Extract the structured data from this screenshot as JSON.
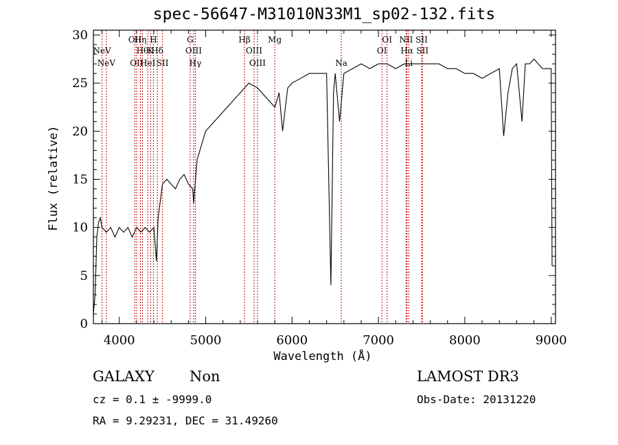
{
  "chart_data": {
    "type": "line",
    "title": "spec-56647-M31010N33M1_sp02-132.fits",
    "xlabel": "Wavelength (Å)",
    "ylabel": "Flux (relative)",
    "xlim": [
      3700,
      9050
    ],
    "ylim": [
      0,
      30.5
    ],
    "xticks": [
      4000,
      5000,
      6000,
      7000,
      8000,
      9000
    ],
    "yticks": [
      0,
      5,
      10,
      15,
      20,
      25,
      30
    ],
    "series": [
      {
        "x": [
          3700,
          3720,
          3740,
          3760,
          3780,
          3800,
          3850,
          3900,
          3950,
          4000,
          4050,
          4100,
          4150,
          4200,
          4250,
          4300,
          4350,
          4400,
          4430,
          4450,
          4500,
          4550,
          4600,
          4650,
          4700,
          4750,
          4800,
          4850,
          4861,
          4900,
          4950,
          5000,
          5100,
          5200,
          5300,
          5400,
          5500,
          5600,
          5700,
          5800,
          5850,
          5890,
          5950,
          6000,
          6100,
          6200,
          6300,
          6400,
          6450,
          6480,
          6500,
          6550,
          6600,
          6700,
          6800,
          6900,
          7000,
          7100,
          7200,
          7300,
          7400,
          7500,
          7600,
          7700,
          7800,
          7900,
          8000,
          8100,
          8200,
          8300,
          8400,
          8450,
          8500,
          8550,
          8600,
          8662,
          8700,
          8750,
          8800,
          8850,
          8900,
          8950,
          9000,
          9010
        ],
        "y": [
          1.0,
          3.0,
          9.0,
          10.5,
          11.0,
          10.0,
          9.5,
          10.0,
          9.0,
          10.0,
          9.5,
          10.0,
          9.0,
          10.0,
          9.5,
          10.0,
          9.5,
          10.0,
          6.5,
          11.0,
          14.5,
          15.0,
          14.5,
          14.0,
          15.0,
          15.5,
          14.5,
          14.0,
          12.5,
          17.0,
          18.5,
          20.0,
          21.0,
          22.0,
          23.0,
          24.0,
          25.0,
          24.5,
          23.5,
          22.5,
          24.0,
          20.0,
          24.5,
          25.0,
          25.5,
          26.0,
          26.0,
          26.0,
          4.0,
          24.0,
          26.0,
          21.0,
          26.0,
          26.5,
          27.0,
          26.5,
          27.0,
          27.0,
          26.5,
          27.0,
          27.0,
          27.0,
          27.0,
          27.0,
          26.5,
          26.5,
          26.0,
          26.0,
          25.5,
          26.0,
          26.5,
          19.5,
          24.0,
          26.5,
          27.0,
          21.0,
          27.0,
          27.0,
          27.5,
          27.0,
          26.5,
          26.5,
          26.5,
          6.0
        ]
      }
    ],
    "lines": [
      {
        "label": "NeV",
        "x": 3800,
        "row": 1
      },
      {
        "label": "NeV",
        "x": 3850,
        "row": 2
      },
      {
        "label": "OII",
        "x": 4180,
        "row": 0
      },
      {
        "label": "OII",
        "x": 4200,
        "row": 2
      },
      {
        "label": "Hη",
        "x": 4245,
        "row": 0
      },
      {
        "label": "Hθ",
        "x": 4268,
        "row": 1
      },
      {
        "label": "HeI",
        "x": 4330,
        "row": 2
      },
      {
        "label": "H",
        "x": 4395,
        "row": 0
      },
      {
        "label": "K",
        "x": 4362,
        "row": 1
      },
      {
        "label": "Hδ",
        "x": 4440,
        "row": 1
      },
      {
        "label": "SII",
        "x": 4500,
        "row": 2
      },
      {
        "label": "G",
        "x": 4820,
        "row": 0
      },
      {
        "label": "OIII",
        "x": 4860,
        "row": 1
      },
      {
        "label": "Hγ",
        "x": 4880,
        "row": 2
      },
      {
        "label": "Hβ",
        "x": 5450,
        "row": 0
      },
      {
        "label": "OIII",
        "x": 5560,
        "row": 1
      },
      {
        "label": "OIII",
        "x": 5600,
        "row": 2
      },
      {
        "label": "Mg",
        "x": 5800,
        "row": 0
      },
      {
        "label": "Na",
        "x": 6570,
        "row": 2
      },
      {
        "label": "OI",
        "x": 7100,
        "row": 0
      },
      {
        "label": "OI",
        "x": 7040,
        "row": 1
      },
      {
        "label": "NII",
        "x": 7320,
        "row": 0
      },
      {
        "label": "Hα",
        "x": 7330,
        "row": 1
      },
      {
        "label": "Li",
        "x": 7350,
        "row": 2
      },
      {
        "label": "SII",
        "x": 7500,
        "row": 0
      },
      {
        "label": "SII",
        "x": 7510,
        "row": 1
      }
    ]
  },
  "info": {
    "class_label": "GALAXY",
    "subclass_label": "Non",
    "survey": "LAMOST DR3",
    "cz_text": "cz = 0.1 ± -9999.0",
    "obs_date": "Obs-Date: 20131220",
    "coords": "RA =   9.29231, DEC =  31.49260"
  }
}
